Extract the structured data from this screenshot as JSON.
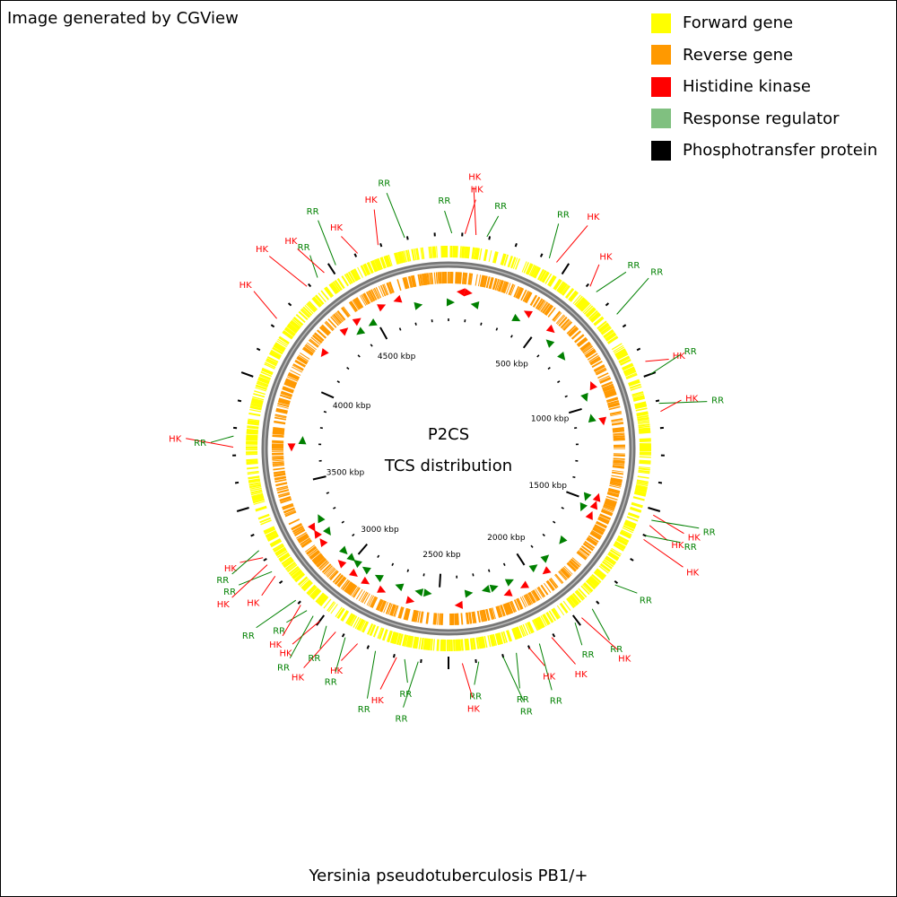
{
  "credit": "Image generated by CGView",
  "legend": [
    {
      "label": "Forward gene",
      "color": "#ffff00",
      "icon": "square"
    },
    {
      "label": "Reverse gene",
      "color": "#ff9900",
      "icon": "square"
    },
    {
      "label": "Histidine kinase",
      "color": "#ff0000",
      "icon": "square"
    },
    {
      "label": "Response regulator",
      "color": "#80c080",
      "icon": "square"
    },
    {
      "label": "Phosphotransfer protein",
      "color": "#000000",
      "icon": "square"
    }
  ],
  "center": {
    "line1": "P2CS",
    "line2": "TCS distribution"
  },
  "organism": "Yersinia pseudotuberculosis PB1/+",
  "map": {
    "genome_length_kbp": 4900,
    "tick_interval_kbp": 100,
    "label_interval_kbp": 500,
    "axis_labels": [
      "500 kbp",
      "1000 kbp",
      "1500 kbp",
      "2000 kbp",
      "2500 kbp",
      "3000 kbp",
      "3500 kbp",
      "4000 kbp",
      "4500 kbp"
    ],
    "colors": {
      "forward": "#ffff00",
      "reverse": "#ff9900",
      "backbone": "#808080",
      "hk": "#ff0000",
      "rr": "#008000",
      "hk_line": "#ff0000",
      "rr_line": "#008000"
    },
    "features": [
      {
        "label": "RR",
        "pos_kbp": 12
      },
      {
        "label": "HK",
        "pos_kbp": 60
      },
      {
        "label": "HK",
        "pos_kbp": 100
      },
      {
        "label": "RR",
        "pos_kbp": 140
      },
      {
        "label": "RR",
        "pos_kbp": 380
      },
      {
        "label": "HK",
        "pos_kbp": 410
      },
      {
        "label": "HK",
        "pos_kbp": 560
      },
      {
        "label": "RR",
        "pos_kbp": 590
      },
      {
        "label": "RR",
        "pos_kbp": 700
      },
      {
        "label": "HK",
        "pos_kbp": 900
      },
      {
        "label": "RR",
        "pos_kbp": 950
      },
      {
        "label": "RR",
        "pos_kbp": 1060
      },
      {
        "label": "HK",
        "pos_kbp": 1090
      },
      {
        "label": "HK",
        "pos_kbp": 1470
      },
      {
        "label": "RR",
        "pos_kbp": 1490
      },
      {
        "label": "HK",
        "pos_kbp": 1510
      },
      {
        "label": "RR",
        "pos_kbp": 1550
      },
      {
        "label": "HK",
        "pos_kbp": 1565
      },
      {
        "label": "RR",
        "pos_kbp": 1760
      },
      {
        "label": "RR",
        "pos_kbp": 1880
      },
      {
        "label": "HK",
        "pos_kbp": 1930
      },
      {
        "label": "RR",
        "pos_kbp": 1960
      },
      {
        "label": "HK",
        "pos_kbp": 2060
      },
      {
        "label": "RR",
        "pos_kbp": 2110
      },
      {
        "label": "HK",
        "pos_kbp": 2150
      },
      {
        "label": "RR",
        "pos_kbp": 2200
      },
      {
        "label": "RR",
        "pos_kbp": 2250
      },
      {
        "label": "RR",
        "pos_kbp": 2340
      },
      {
        "label": "HK",
        "pos_kbp": 2400
      },
      {
        "label": "RR",
        "pos_kbp": 2560
      },
      {
        "label": "RR",
        "pos_kbp": 2610
      },
      {
        "label": "HK",
        "pos_kbp": 2640
      },
      {
        "label": "RR",
        "pos_kbp": 2720
      },
      {
        "label": "HK",
        "pos_kbp": 2790
      },
      {
        "label": "RR",
        "pos_kbp": 2840
      },
      {
        "label": "HK",
        "pos_kbp": 2880
      },
      {
        "label": "RR",
        "pos_kbp": 2920
      },
      {
        "label": "HK",
        "pos_kbp": 2950
      },
      {
        "label": "RR",
        "pos_kbp": 2980
      },
      {
        "label": "RR",
        "pos_kbp": 3010
      },
      {
        "label": "HK",
        "pos_kbp": 3040
      },
      {
        "label": "RR",
        "pos_kbp": 3065
      },
      {
        "label": "HK",
        "pos_kbp": 3180
      },
      {
        "label": "RR",
        "pos_kbp": 3200
      },
      {
        "label": "HK",
        "pos_kbp": 3230
      },
      {
        "label": "HK",
        "pos_kbp": 3260
      },
      {
        "label": "RR",
        "pos_kbp": 3290
      },
      {
        "label": "HK",
        "pos_kbp": 3680
      },
      {
        "label": "RR",
        "pos_kbp": 3720
      },
      {
        "label": "HK",
        "pos_kbp": 4180
      },
      {
        "label": "HK",
        "pos_kbp": 4340
      },
      {
        "label": "RR",
        "pos_kbp": 4390
      },
      {
        "label": "HK",
        "pos_kbp": 4420
      },
      {
        "label": "RR",
        "pos_kbp": 4470
      },
      {
        "label": "HK",
        "pos_kbp": 4560
      },
      {
        "label": "HK",
        "pos_kbp": 4640
      },
      {
        "label": "RR",
        "pos_kbp": 4740
      }
    ]
  }
}
